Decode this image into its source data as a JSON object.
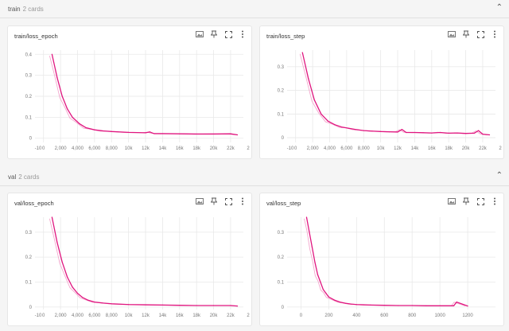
{
  "sections": [
    {
      "title": "train",
      "count": "2 cards"
    },
    {
      "title": "val",
      "count": "2 cards"
    }
  ],
  "icons": {
    "collapse": "chevron-up-icon",
    "image": "image-icon",
    "pin": "pin-icon",
    "fullscreen": "fullscreen-icon",
    "more": "more-vert-icon"
  },
  "colors": {
    "smoothed": "#e0157f",
    "raw": "#f4a6cd",
    "grid": "#e9e9e9"
  },
  "cards": [
    {
      "title": "train/loss_epoch"
    },
    {
      "title": "train/loss_step"
    },
    {
      "title": "val/loss_epoch"
    },
    {
      "title": "val/loss_step"
    }
  ],
  "chart_data": [
    {
      "type": "line",
      "title": "train/loss_epoch",
      "x_ticks": [
        "2,000",
        "4,000",
        "6,000",
        "8,000",
        "10k",
        "12k",
        "14k",
        "16k",
        "18k",
        "20k",
        "22k"
      ],
      "x_edge_labels": [
        "-10",
        "0",
        "2"
      ],
      "y_ticks": [
        "0",
        "0.1",
        "0.2",
        "0.3",
        "0.4"
      ],
      "xlim": [
        -1000,
        23500
      ],
      "ylim": [
        -0.02,
        0.42
      ],
      "series": [
        {
          "x": [
            1000,
            1600,
            2200,
            2800,
            3400,
            4200,
            5000,
            6000,
            7000,
            8000,
            10000,
            12000,
            12500,
            13000,
            14000,
            16000,
            18000,
            20000,
            22000,
            22800
          ],
          "y": [
            0.4,
            0.29,
            0.2,
            0.14,
            0.1,
            0.07,
            0.05,
            0.04,
            0.035,
            0.032,
            0.028,
            0.026,
            0.03,
            0.022,
            0.022,
            0.021,
            0.02,
            0.02,
            0.021,
            0.016
          ]
        }
      ]
    },
    {
      "type": "line",
      "title": "train/loss_step",
      "x_ticks": [
        "2,000",
        "4,000",
        "6,000",
        "8,000",
        "10k",
        "12k",
        "14k",
        "16k",
        "18k",
        "20k",
        "22k"
      ],
      "x_edge_labels": [
        "-10",
        "0",
        "2"
      ],
      "y_ticks": [
        "0",
        "0.1",
        "0.2",
        "0.3"
      ],
      "xlim": [
        -1000,
        23500
      ],
      "ylim": [
        -0.02,
        0.37
      ],
      "series": [
        {
          "x": [
            800,
            1500,
            2200,
            3000,
            3800,
            4600,
            5400,
            6200,
            7000,
            8000,
            9000,
            10000,
            11000,
            12000,
            12500,
            13000,
            14000,
            15000,
            16000,
            17000,
            18000,
            19000,
            20000,
            21000,
            21500,
            22000,
            22800
          ],
          "y": [
            0.36,
            0.25,
            0.16,
            0.1,
            0.07,
            0.055,
            0.045,
            0.04,
            0.035,
            0.03,
            0.028,
            0.026,
            0.025,
            0.024,
            0.035,
            0.022,
            0.022,
            0.021,
            0.02,
            0.022,
            0.019,
            0.02,
            0.018,
            0.019,
            0.03,
            0.015,
            0.012
          ]
        }
      ]
    },
    {
      "type": "line",
      "title": "val/loss_epoch",
      "x_ticks": [
        "2,000",
        "4,000",
        "6,000",
        "8,000",
        "10k",
        "12k",
        "14k",
        "16k",
        "18k",
        "20k",
        "22k"
      ],
      "x_edge_labels": [
        "-10",
        "0",
        "2"
      ],
      "y_ticks": [
        "0",
        "0.1",
        "0.2",
        "0.3"
      ],
      "xlim": [
        -1000,
        23500
      ],
      "ylim": [
        -0.01,
        0.36
      ],
      "series": [
        {
          "x": [
            1000,
            1600,
            2200,
            2800,
            3400,
            4000,
            4600,
            5200,
            6000,
            7000,
            8000,
            10000,
            12000,
            14000,
            16000,
            18000,
            20000,
            22000,
            22800
          ],
          "y": [
            0.36,
            0.26,
            0.18,
            0.12,
            0.08,
            0.055,
            0.038,
            0.028,
            0.02,
            0.016,
            0.013,
            0.01,
            0.009,
            0.008,
            0.007,
            0.006,
            0.006,
            0.006,
            0.004
          ]
        }
      ]
    },
    {
      "type": "line",
      "title": "val/loss_step",
      "x_ticks": [
        "200",
        "400",
        "600",
        "800",
        "1000",
        "1200"
      ],
      "x_edge_labels": [
        "0"
      ],
      "y_ticks": [
        "0",
        "0.1",
        "0.2",
        "0.3"
      ],
      "xlim": [
        -100,
        1400
      ],
      "ylim": [
        -0.01,
        0.36
      ],
      "series": [
        {
          "x": [
            40,
            60,
            80,
            100,
            120,
            140,
            160,
            180,
            200,
            240,
            280,
            320,
            360,
            400,
            450,
            500,
            600,
            700,
            800,
            900,
            1000,
            1100,
            1120,
            1200
          ],
          "y": [
            0.36,
            0.3,
            0.24,
            0.18,
            0.13,
            0.1,
            0.07,
            0.055,
            0.04,
            0.028,
            0.02,
            0.015,
            0.012,
            0.01,
            0.009,
            0.008,
            0.007,
            0.006,
            0.006,
            0.005,
            0.005,
            0.005,
            0.02,
            0.004
          ]
        }
      ]
    }
  ]
}
